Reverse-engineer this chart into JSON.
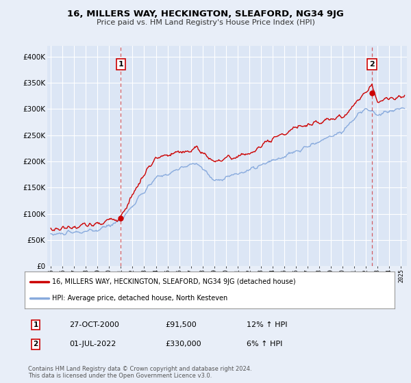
{
  "title": "16, MILLERS WAY, HECKINGTON, SLEAFORD, NG34 9JG",
  "subtitle": "Price paid vs. HM Land Registry's House Price Index (HPI)",
  "background_color": "#e8eef8",
  "plot_bg_color": "#dce6f5",
  "grid_color": "#ffffff",
  "red_line_color": "#cc0000",
  "blue_line_color": "#88aadd",
  "annotation_border_color": "#cc0000",
  "sale1_x": 2001.0,
  "sale1_y": 91500,
  "sale1_label": "1",
  "sale1_date": "27-OCT-2000",
  "sale1_price": "£91,500",
  "sale1_hpi": "12% ↑ HPI",
  "sale2_x": 2022.5,
  "sale2_y": 330000,
  "sale2_label": "2",
  "sale2_date": "01-JUL-2022",
  "sale2_price": "£330,000",
  "sale2_hpi": "6% ↑ HPI",
  "ylim": [
    0,
    420000
  ],
  "xlim_start": 1994.7,
  "xlim_end": 2025.5,
  "yticks": [
    0,
    50000,
    100000,
    150000,
    200000,
    250000,
    300000,
    350000,
    400000
  ],
  "ytick_labels": [
    "£0",
    "£50K",
    "£100K",
    "£150K",
    "£200K",
    "£250K",
    "£300K",
    "£350K",
    "£400K"
  ],
  "footer": "Contains HM Land Registry data © Crown copyright and database right 2024.\nThis data is licensed under the Open Government Licence v3.0.",
  "legend_line1": "16, MILLERS WAY, HECKINGTON, SLEAFORD, NG34 9JG (detached house)",
  "legend_line2": "HPI: Average price, detached house, North Kesteven"
}
